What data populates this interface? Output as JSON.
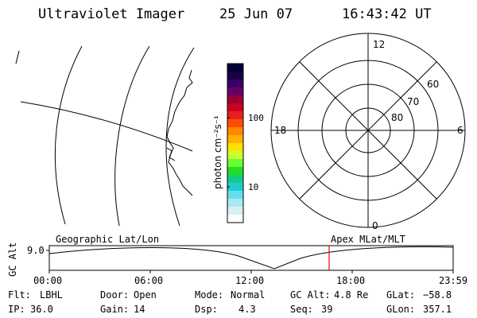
{
  "header": {
    "instrument": "Ultraviolet Imager",
    "date": "25 Jun 07",
    "time": "16:43:42 UT"
  },
  "colorbar": {
    "unit_label": "photon cm⁻²s⁻¹",
    "tick_labels": [
      "100",
      "10"
    ],
    "colors_top_to_bottom": [
      "#000033",
      "#1a0044",
      "#3a0066",
      "#660066",
      "#990033",
      "#cc0022",
      "#e62020",
      "#ff4d00",
      "#ff8800",
      "#ffb000",
      "#ffe000",
      "#ccff33",
      "#66ff33",
      "#22dd22",
      "#11cc88",
      "#22cccc",
      "#66ddee",
      "#a8e8f0",
      "#d8f0f4",
      "#ffffff"
    ]
  },
  "polar_plot": {
    "mlt_labels": {
      "top": "12",
      "right": "6",
      "bottom": "0",
      "left": "18"
    },
    "lat_labels": [
      "60",
      "70",
      "80"
    ]
  },
  "timeline": {
    "left_title": "Geographic Lat/Lon",
    "right_title": "Apex MLat/MLT",
    "yaxis_label": "GC Alt",
    "ytick_label": "9.0",
    "xtick_labels": [
      "00:00",
      "06:00",
      "12:00",
      "18:00",
      "23:59"
    ],
    "marker_color": "#ff0000"
  },
  "footer": {
    "rows": [
      [
        {
          "label": "Flt:",
          "value": "LBHL"
        },
        {
          "label": "Door:",
          "value": "Open"
        },
        {
          "label": "Mode:",
          "value": "Normal"
        },
        {
          "label": "GC Alt:",
          "value": "4.8 Re"
        },
        {
          "label": "GLat:",
          "value": "−58.8"
        }
      ],
      [
        {
          "label": "IP:",
          "value": "36.0"
        },
        {
          "label": "Gain:",
          "value": "14"
        },
        {
          "label": "Dsp:",
          "value": "4.3"
        },
        {
          "label": "Seq:",
          "value": "39"
        },
        {
          "label": "GLon:",
          "value": "357.1"
        }
      ]
    ]
  }
}
